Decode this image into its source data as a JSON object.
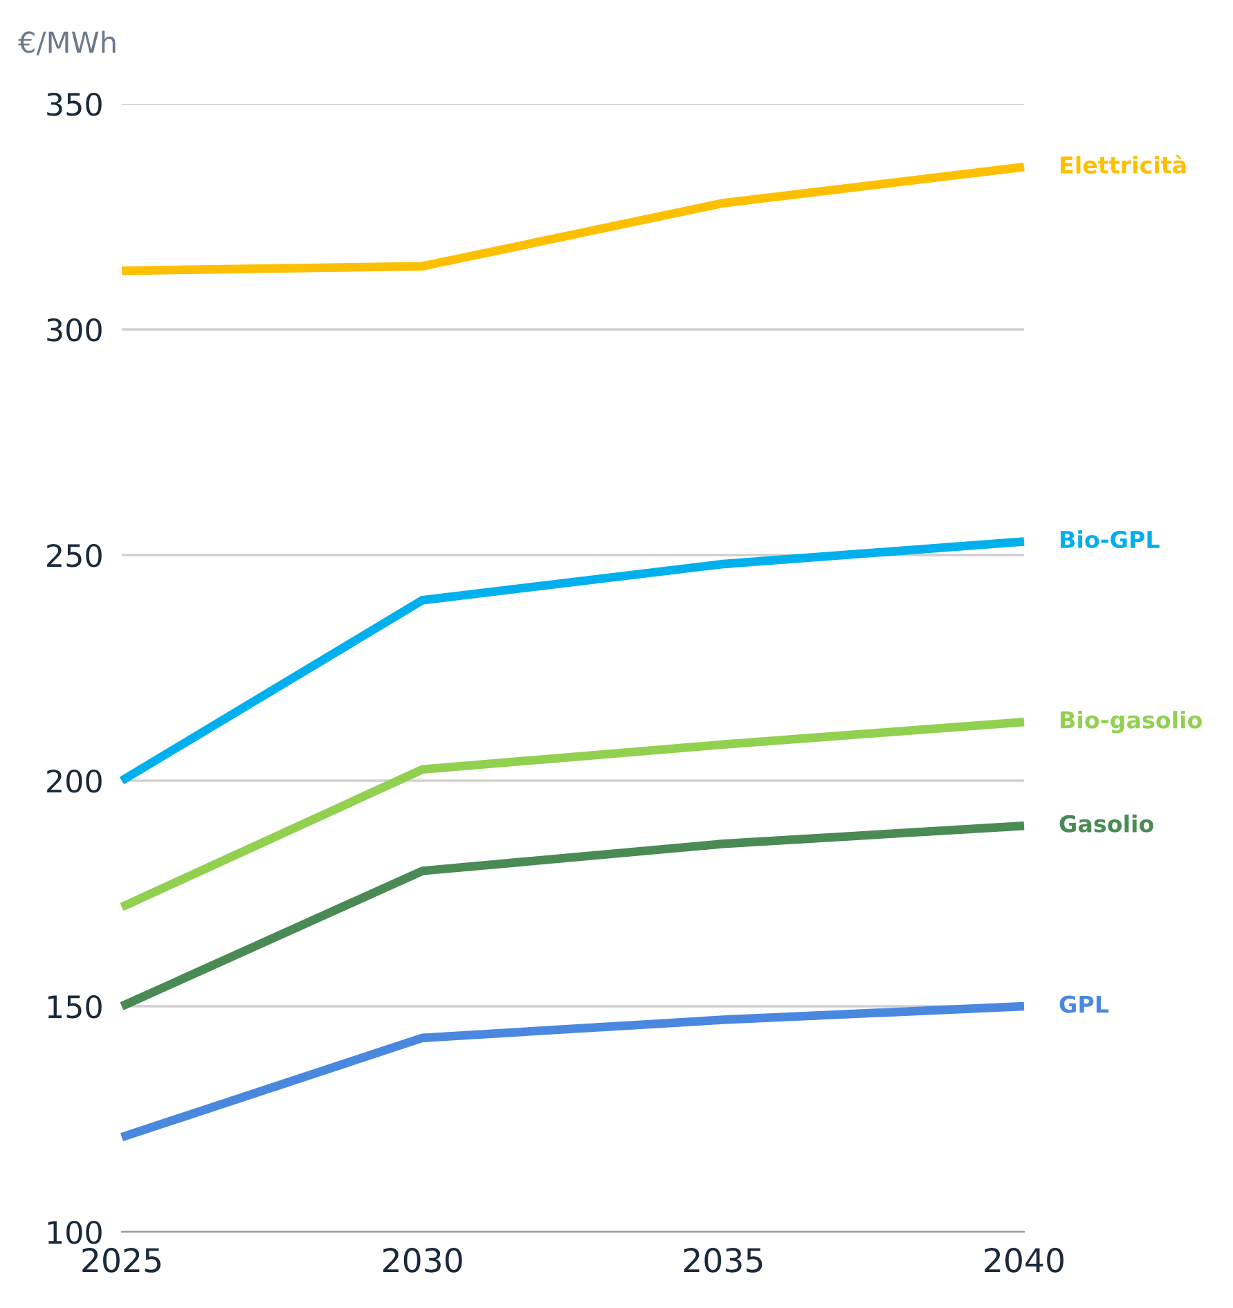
{
  "chart_data": {
    "type": "line",
    "ylabel": "€/MWh",
    "x": [
      2025,
      2030,
      2035,
      2040
    ],
    "series": [
      {
        "name": "Elettricità",
        "color": "#fdc000",
        "values": [
          313,
          314,
          328,
          336
        ]
      },
      {
        "name": "Bio-GPL",
        "color": "#00b0ec",
        "values": [
          200,
          240,
          248,
          253
        ]
      },
      {
        "name": "Bio-gasolio",
        "color": "#92d050",
        "values": [
          172,
          202.5,
          208,
          213
        ]
      },
      {
        "name": "Gasolio",
        "color": "#4a8a55",
        "values": [
          150,
          180,
          186,
          190
        ]
      },
      {
        "name": "GPL",
        "color": "#4a88e0",
        "values": [
          121,
          143,
          147,
          150
        ]
      }
    ],
    "xlim": [
      2025,
      2040
    ],
    "xticks": [
      2025,
      2030,
      2035,
      2040
    ],
    "ylim": [
      100,
      350
    ],
    "yticks": [
      100,
      150,
      200,
      250,
      300,
      350
    ],
    "grid": "y",
    "legend": false,
    "marker": "none",
    "line_style": "solid"
  }
}
